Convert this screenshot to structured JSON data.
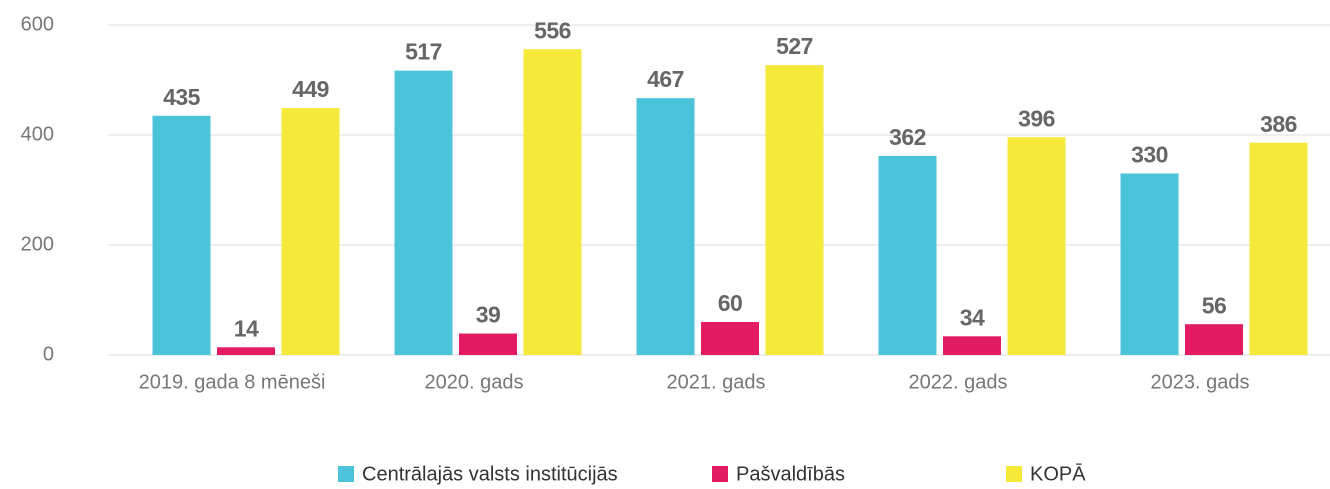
{
  "chart_data": {
    "type": "bar",
    "categories": [
      "2019. gada 8 mēneši",
      "2020. gads",
      "2021. gads",
      "2022. gads",
      "2023. gads"
    ],
    "series": [
      {
        "name": "Centrālajās valsts institūcijās",
        "color": "#4bc4da",
        "values": [
          435,
          517,
          467,
          362,
          330
        ]
      },
      {
        "name": "Pašvaldībās",
        "color": "#e31b62",
        "values": [
          14,
          39,
          60,
          34,
          56
        ]
      },
      {
        "name": "KOPĀ",
        "color": "#f5ea3a",
        "values": [
          449,
          556,
          527,
          396,
          386
        ]
      }
    ],
    "ylim": [
      0,
      600
    ],
    "yticks": [
      0,
      200,
      400,
      600
    ],
    "grid": true,
    "legend": "bottom"
  }
}
